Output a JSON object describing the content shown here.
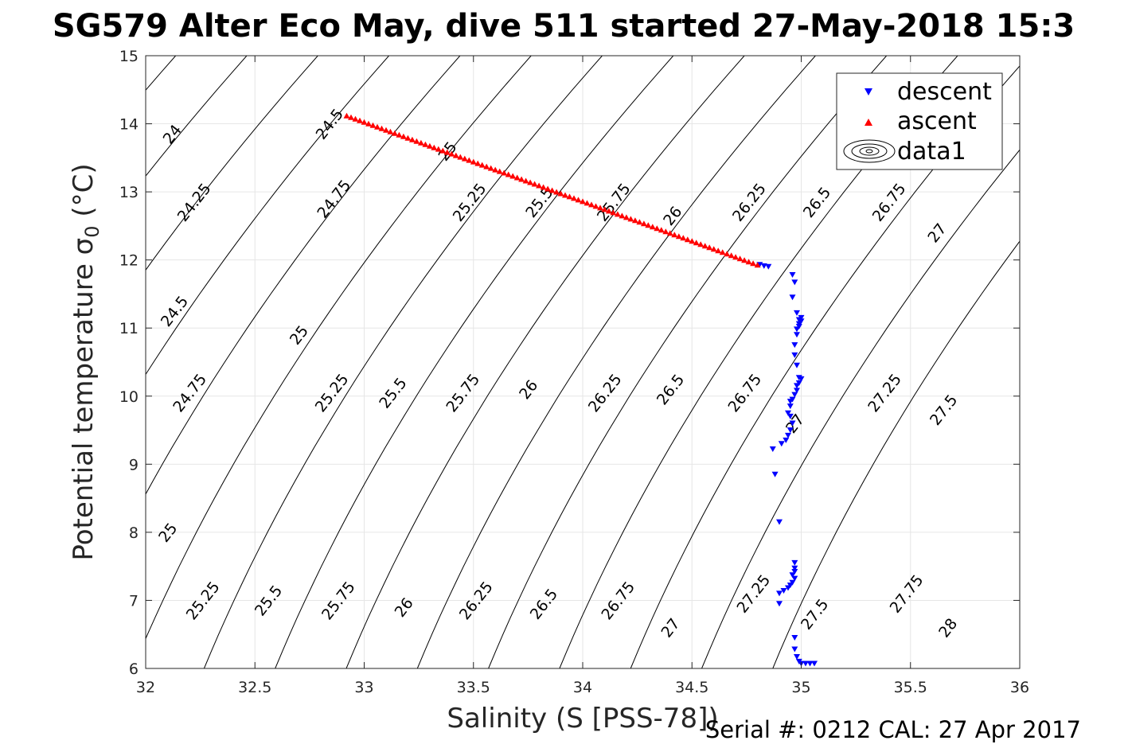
{
  "page": {
    "title": "SG579 Alter Eco May, dive 511 started 27-May-2018 15:3",
    "footer": "Serial #: 0212  CAL: 27 Apr 2017"
  },
  "chart_data": {
    "type": "scatter",
    "title": "SG579 Alter Eco May, dive 511 started 27-May-2018 15:3",
    "xlabel": "Salinity (S [PSS-78])",
    "ylabel": "Potential temperature σ 0 (°C)",
    "xlim": [
      32,
      36
    ],
    "ylim": [
      6,
      15
    ],
    "xticks": [
      32,
      32.5,
      33,
      33.5,
      34,
      34.5,
      35,
      35.5,
      36
    ],
    "xtick_labels": [
      "32",
      "32.5",
      "33",
      "33.5",
      "34",
      "34.5",
      "35",
      "35.5",
      "36"
    ],
    "yticks": [
      6,
      7,
      8,
      9,
      10,
      11,
      12,
      13,
      14,
      15
    ],
    "ytick_labels": [
      "6",
      "7",
      "8",
      "9",
      "10",
      "11",
      "12",
      "13",
      "14",
      "15"
    ],
    "grid": true,
    "legend_position": "top-right",
    "series": [
      {
        "name": "descent",
        "color": "#0000ff",
        "marker": "triangle-down",
        "points": [
          [
            34.81,
            11.93
          ],
          [
            34.83,
            11.91
          ],
          [
            34.85,
            11.9
          ],
          [
            34.96,
            11.78
          ],
          [
            34.97,
            11.67
          ],
          [
            34.96,
            11.45
          ],
          [
            34.98,
            11.22
          ],
          [
            35.0,
            11.15
          ],
          [
            34.99,
            11.12
          ],
          [
            35.0,
            11.1
          ],
          [
            34.99,
            11.06
          ],
          [
            34.99,
            11.02
          ],
          [
            34.98,
            10.98
          ],
          [
            34.98,
            10.9
          ],
          [
            34.97,
            10.75
          ],
          [
            34.97,
            10.6
          ],
          [
            34.98,
            10.45
          ],
          [
            34.99,
            10.27
          ],
          [
            35.0,
            10.25
          ],
          [
            34.99,
            10.19
          ],
          [
            34.98,
            10.15
          ],
          [
            34.98,
            10.08
          ],
          [
            34.97,
            10.02
          ],
          [
            34.96,
            9.95
          ],
          [
            34.95,
            9.92
          ],
          [
            34.95,
            9.85
          ],
          [
            34.94,
            9.75
          ],
          [
            34.95,
            9.7
          ],
          [
            34.96,
            9.6
          ],
          [
            34.95,
            9.5
          ],
          [
            34.94,
            9.42
          ],
          [
            34.93,
            9.35
          ],
          [
            34.91,
            9.3
          ],
          [
            34.87,
            9.22
          ],
          [
            34.88,
            8.85
          ],
          [
            34.9,
            8.15
          ],
          [
            34.97,
            7.55
          ],
          [
            34.97,
            7.47
          ],
          [
            34.97,
            7.42
          ],
          [
            34.96,
            7.37
          ],
          [
            34.97,
            7.32
          ],
          [
            34.96,
            7.26
          ],
          [
            34.95,
            7.22
          ],
          [
            34.94,
            7.18
          ],
          [
            34.92,
            7.14
          ],
          [
            34.9,
            7.1
          ],
          [
            34.9,
            6.95
          ],
          [
            34.97,
            6.45
          ],
          [
            34.97,
            6.28
          ],
          [
            34.98,
            6.17
          ],
          [
            34.99,
            6.1
          ],
          [
            35.0,
            6.07
          ],
          [
            35.02,
            6.07
          ],
          [
            35.04,
            6.07
          ],
          [
            35.06,
            6.07
          ]
        ]
      },
      {
        "name": "ascent",
        "color": "#ff0000",
        "marker": "triangle-up",
        "x_range": [
          32.92,
          34.8
        ],
        "y_range": [
          14.12,
          11.93
        ],
        "n_points": 95
      },
      {
        "name": "data1",
        "color": "#000000",
        "type": "contour",
        "contour_levels": [
          24,
          24.25,
          24.5,
          24.75,
          25,
          25.25,
          25.5,
          25.75,
          26,
          26.25,
          26.5,
          26.75,
          27,
          27.25,
          27.5,
          27.75,
          28
        ]
      }
    ],
    "contour_labels": [
      {
        "text": "24",
        "s": 32.12,
        "t": 13.85
      },
      {
        "text": "24.25",
        "s": 32.22,
        "t": 12.85
      },
      {
        "text": "24.5",
        "s": 32.13,
        "t": 11.25
      },
      {
        "text": "24.75",
        "s": 32.2,
        "t": 10.05
      },
      {
        "text": "25",
        "s": 32.1,
        "t": 8.0
      },
      {
        "text": "25.25",
        "s": 32.26,
        "t": 7.0
      },
      {
        "text": "25.5",
        "s": 32.56,
        "t": 7.0
      },
      {
        "text": "25.75",
        "s": 32.88,
        "t": 7.0
      },
      {
        "text": "26",
        "s": 33.18,
        "t": 6.9
      },
      {
        "text": "26.25",
        "s": 33.51,
        "t": 7.0
      },
      {
        "text": "26.5",
        "s": 33.82,
        "t": 6.95
      },
      {
        "text": "26.75",
        "s": 34.16,
        "t": 7.0
      },
      {
        "text": "27",
        "s": 34.4,
        "t": 6.6
      },
      {
        "text": "27.25",
        "s": 34.78,
        "t": 7.1
      },
      {
        "text": "27.5",
        "s": 35.06,
        "t": 6.8
      },
      {
        "text": "27.75",
        "s": 35.48,
        "t": 7.1
      },
      {
        "text": "28",
        "s": 35.67,
        "t": 6.6
      },
      {
        "text": "24.5",
        "s": 32.84,
        "t": 14.0
      },
      {
        "text": "24.75",
        "s": 32.86,
        "t": 12.9
      },
      {
        "text": "25",
        "s": 32.7,
        "t": 10.9
      },
      {
        "text": "25.25",
        "s": 32.85,
        "t": 10.05
      },
      {
        "text": "25.5",
        "s": 33.13,
        "t": 10.05
      },
      {
        "text": "25.75",
        "s": 33.45,
        "t": 10.05
      },
      {
        "text": "26",
        "s": 33.75,
        "t": 10.1
      },
      {
        "text": "26.25",
        "s": 34.1,
        "t": 10.05
      },
      {
        "text": "26.5",
        "s": 34.4,
        "t": 10.1
      },
      {
        "text": "26.75",
        "s": 34.74,
        "t": 10.05
      },
      {
        "text": "27",
        "s": 34.97,
        "t": 9.6
      },
      {
        "text": "27.25",
        "s": 35.38,
        "t": 10.05
      },
      {
        "text": "27.5",
        "s": 35.65,
        "t": 9.8
      },
      {
        "text": "25",
        "s": 33.38,
        "t": 13.6
      },
      {
        "text": "25.25",
        "s": 33.48,
        "t": 12.85
      },
      {
        "text": "25.5",
        "s": 33.8,
        "t": 12.85
      },
      {
        "text": "25.75",
        "s": 34.14,
        "t": 12.85
      },
      {
        "text": "26",
        "s": 34.41,
        "t": 12.65
      },
      {
        "text": "26.25",
        "s": 34.76,
        "t": 12.85
      },
      {
        "text": "26.5",
        "s": 35.07,
        "t": 12.85
      },
      {
        "text": "26.75",
        "s": 35.4,
        "t": 12.85
      },
      {
        "text": "27",
        "s": 35.62,
        "t": 12.4
      }
    ]
  }
}
